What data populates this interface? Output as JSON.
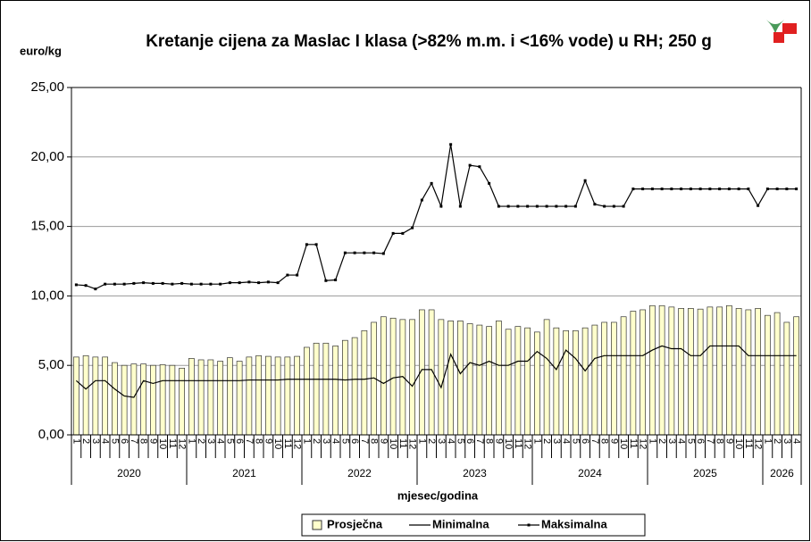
{
  "chart_data": {
    "type": "bar_line",
    "title": "Kretanje cijena za Maslac I klasa (>82% m.m. i <16% vode) u RH; 250 g",
    "y_label": "euro/kg",
    "x_label": "mjesec/godina",
    "categories": [
      "1",
      "2",
      "3",
      "4",
      "5",
      "6",
      "7",
      "8",
      "9",
      "10",
      "11",
      "12",
      "1",
      "2",
      "3",
      "4",
      "5",
      "6",
      "7",
      "8",
      "9",
      "10",
      "11",
      "12",
      "1",
      "2",
      "3",
      "4",
      "5",
      "6",
      "7",
      "8",
      "9",
      "10",
      "11",
      "12",
      "1",
      "2",
      "3",
      "4",
      "5",
      "6",
      "7",
      "8",
      "9",
      "10",
      "11",
      "12",
      "1",
      "2",
      "3",
      "4",
      "5",
      "6",
      "7",
      "8",
      "9",
      "10",
      "11",
      "12",
      "1",
      "2",
      "3",
      "4",
      "5",
      "6",
      "7",
      "8",
      "9",
      "10",
      "11",
      "12",
      "1",
      "2",
      "3",
      "4"
    ],
    "years": [
      "2020",
      "2021",
      "2022",
      "2023",
      "2024",
      "2025",
      "2026"
    ],
    "series": [
      {
        "name": "Prosječna",
        "kind": "bar",
        "color": "#ffffcc",
        "values": [
          5.6,
          5.7,
          5.6,
          5.6,
          5.2,
          5.0,
          5.1,
          5.1,
          5.0,
          5.05,
          5.0,
          4.8,
          5.5,
          5.4,
          5.4,
          5.3,
          5.55,
          5.3,
          5.6,
          5.7,
          5.65,
          5.6,
          5.6,
          5.65,
          6.3,
          6.6,
          6.6,
          6.4,
          6.8,
          7.0,
          7.5,
          8.1,
          8.5,
          8.4,
          8.3,
          8.3,
          9.0,
          9.0,
          8.3,
          8.2,
          8.2,
          8.0,
          7.9,
          7.8,
          8.2,
          7.6,
          7.8,
          7.7,
          7.4,
          8.3,
          7.7,
          7.5,
          7.5,
          7.7,
          7.9,
          8.1,
          8.1,
          8.5,
          8.9,
          9.0,
          9.3,
          9.3,
          9.2,
          9.1,
          9.1,
          9.05,
          9.2,
          9.2,
          9.3,
          9.1,
          9.0,
          9.1,
          8.6,
          8.8,
          8.1,
          8.5
        ]
      },
      {
        "name": "Minimalna",
        "kind": "line",
        "color": "#000000",
        "values": [
          3.9,
          3.3,
          3.9,
          3.9,
          3.3,
          2.8,
          2.7,
          3.9,
          3.7,
          3.9,
          3.9,
          3.9,
          3.9,
          3.9,
          3.9,
          3.9,
          3.9,
          3.9,
          3.95,
          3.95,
          3.95,
          3.95,
          4.0,
          4.0,
          4.0,
          4.0,
          4.0,
          4.0,
          3.95,
          4.0,
          4.0,
          4.1,
          3.7,
          4.1,
          4.2,
          3.5,
          4.7,
          4.7,
          3.4,
          5.8,
          4.4,
          5.2,
          5.0,
          5.3,
          5.0,
          5.0,
          5.3,
          5.3,
          6.0,
          5.5,
          4.7,
          6.1,
          5.5,
          4.6,
          5.5,
          5.7,
          5.7,
          5.7,
          5.7,
          5.7,
          6.1,
          6.4,
          6.2,
          6.2,
          5.7,
          5.7,
          6.4,
          6.4,
          6.4,
          6.4,
          5.7,
          5.7,
          5.7,
          5.7,
          5.7,
          5.7
        ]
      },
      {
        "name": "Maksimalna",
        "kind": "line_marker",
        "color": "#000000",
        "values": [
          10.8,
          10.75,
          10.5,
          10.85,
          10.85,
          10.85,
          10.9,
          10.95,
          10.9,
          10.9,
          10.85,
          10.9,
          10.85,
          10.85,
          10.85,
          10.85,
          10.95,
          10.95,
          11.0,
          10.95,
          11.0,
          10.95,
          11.5,
          11.5,
          13.7,
          13.7,
          11.1,
          11.15,
          13.1,
          13.1,
          13.1,
          13.1,
          13.05,
          14.5,
          14.5,
          14.9,
          16.9,
          18.1,
          16.45,
          20.9,
          16.45,
          19.4,
          19.3,
          18.1,
          16.45,
          16.45,
          16.45,
          16.45,
          16.45,
          16.45,
          16.45,
          16.45,
          16.45,
          18.3,
          16.6,
          16.45,
          16.45,
          16.45,
          17.7,
          17.7,
          17.7,
          17.7,
          17.7,
          17.7,
          17.7,
          17.7,
          17.7,
          17.7,
          17.7,
          17.7,
          17.7,
          16.5,
          17.7,
          17.7,
          17.7,
          17.7
        ]
      }
    ],
    "ylim": [
      0,
      25
    ],
    "yticks": [
      {
        "value": 0,
        "label": "0,00"
      },
      {
        "value": 5,
        "label": "5,00"
      },
      {
        "value": 10,
        "label": "10,00"
      },
      {
        "value": 15,
        "label": "15,00"
      },
      {
        "value": 20,
        "label": "20,00"
      },
      {
        "value": 25,
        "label": "25,00"
      }
    ],
    "grid": true,
    "legend": "bottom"
  }
}
